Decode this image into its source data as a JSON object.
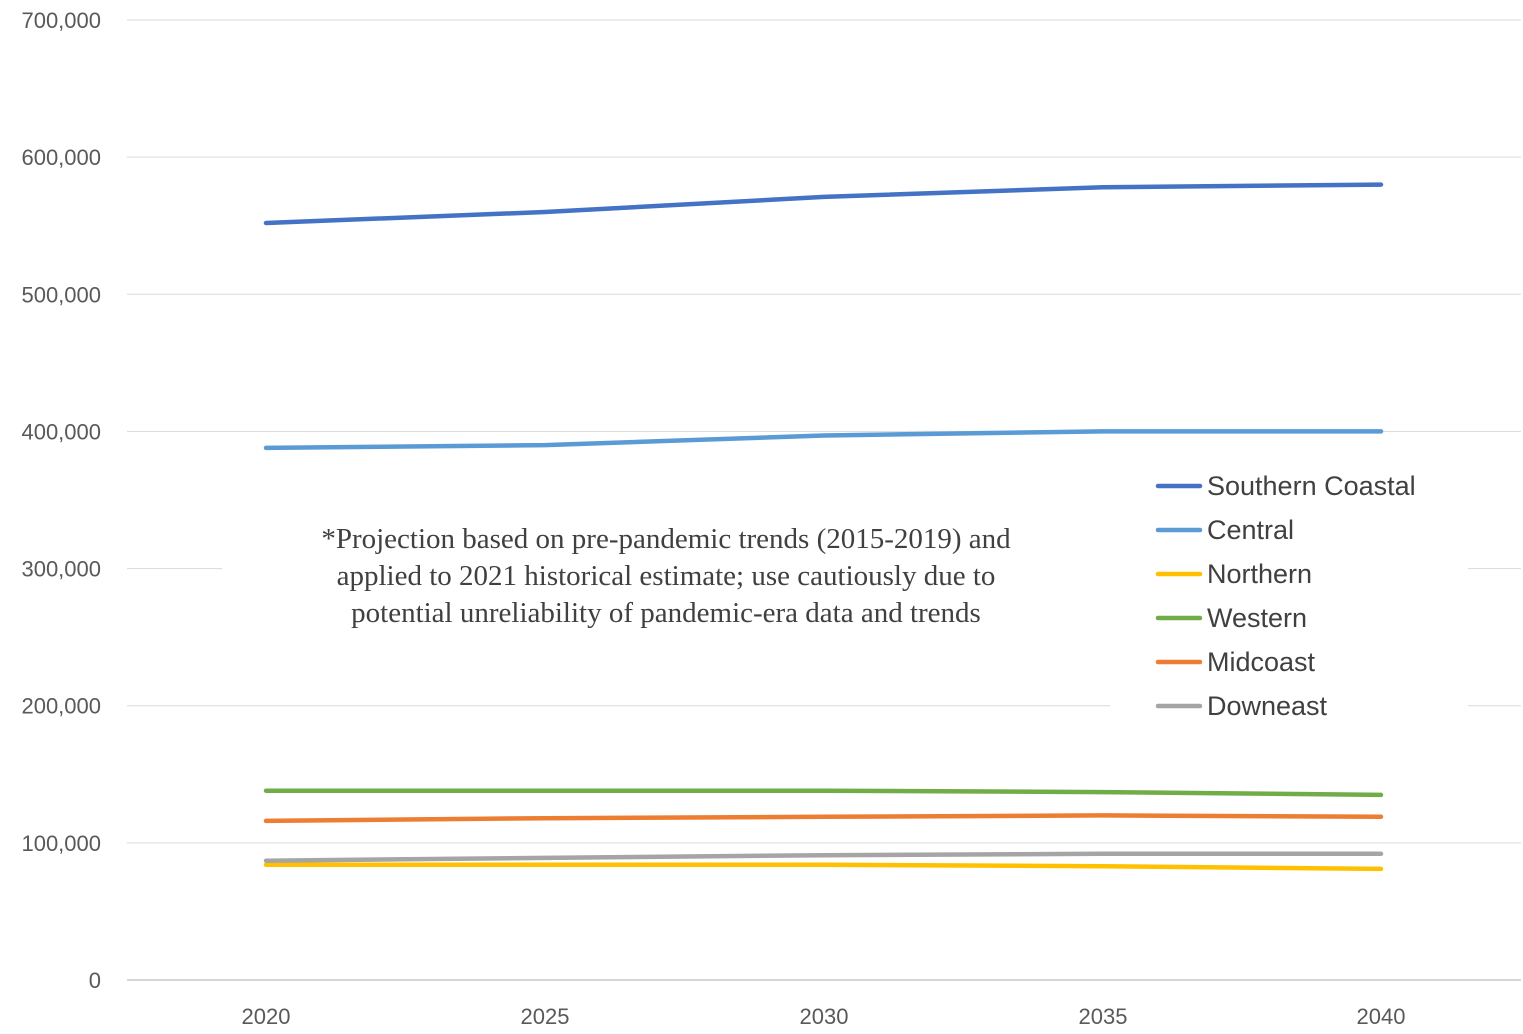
{
  "chart_data": {
    "type": "line",
    "title": "",
    "xlabel": "",
    "ylabel": "",
    "x": [
      2020,
      2025,
      2030,
      2035,
      2040
    ],
    "x_tick_labels": [
      "2020",
      "2025",
      "2030",
      "2035",
      "2040"
    ],
    "ylim": [
      0,
      700000
    ],
    "y_ticks": [
      0,
      100000,
      200000,
      300000,
      400000,
      500000,
      600000,
      700000
    ],
    "y_tick_labels": [
      "0",
      "100,000",
      "200,000",
      "300,000",
      "400,000",
      "500,000",
      "600,000",
      "700,000"
    ],
    "grid": "horizontal",
    "legend_position": "right",
    "series": [
      {
        "name": "Southern Coastal",
        "color": "#4472C4",
        "values": [
          552000,
          560000,
          571000,
          578000,
          580000
        ]
      },
      {
        "name": "Central",
        "color": "#5B9BD5",
        "values": [
          388000,
          390000,
          397000,
          400000,
          400000
        ]
      },
      {
        "name": "Northern",
        "color": "#FFC000",
        "values": [
          84000,
          84000,
          84000,
          83000,
          81000
        ]
      },
      {
        "name": "Western",
        "color": "#70AD47",
        "values": [
          138000,
          138000,
          138000,
          137000,
          135000
        ]
      },
      {
        "name": "Midcoast",
        "color": "#ED7D31",
        "values": [
          116000,
          118000,
          119000,
          120000,
          119000
        ]
      },
      {
        "name": "Downeast",
        "color": "#A5A5A5",
        "values": [
          87000,
          89000,
          91000,
          92000,
          92000
        ]
      }
    ],
    "annotation": [
      "*Projection based on pre-pandemic trends (2015-2019) and",
      "applied to 2021 historical estimate; use cautiously due to",
      "potential unreliability of pandemic-era data and trends"
    ]
  }
}
